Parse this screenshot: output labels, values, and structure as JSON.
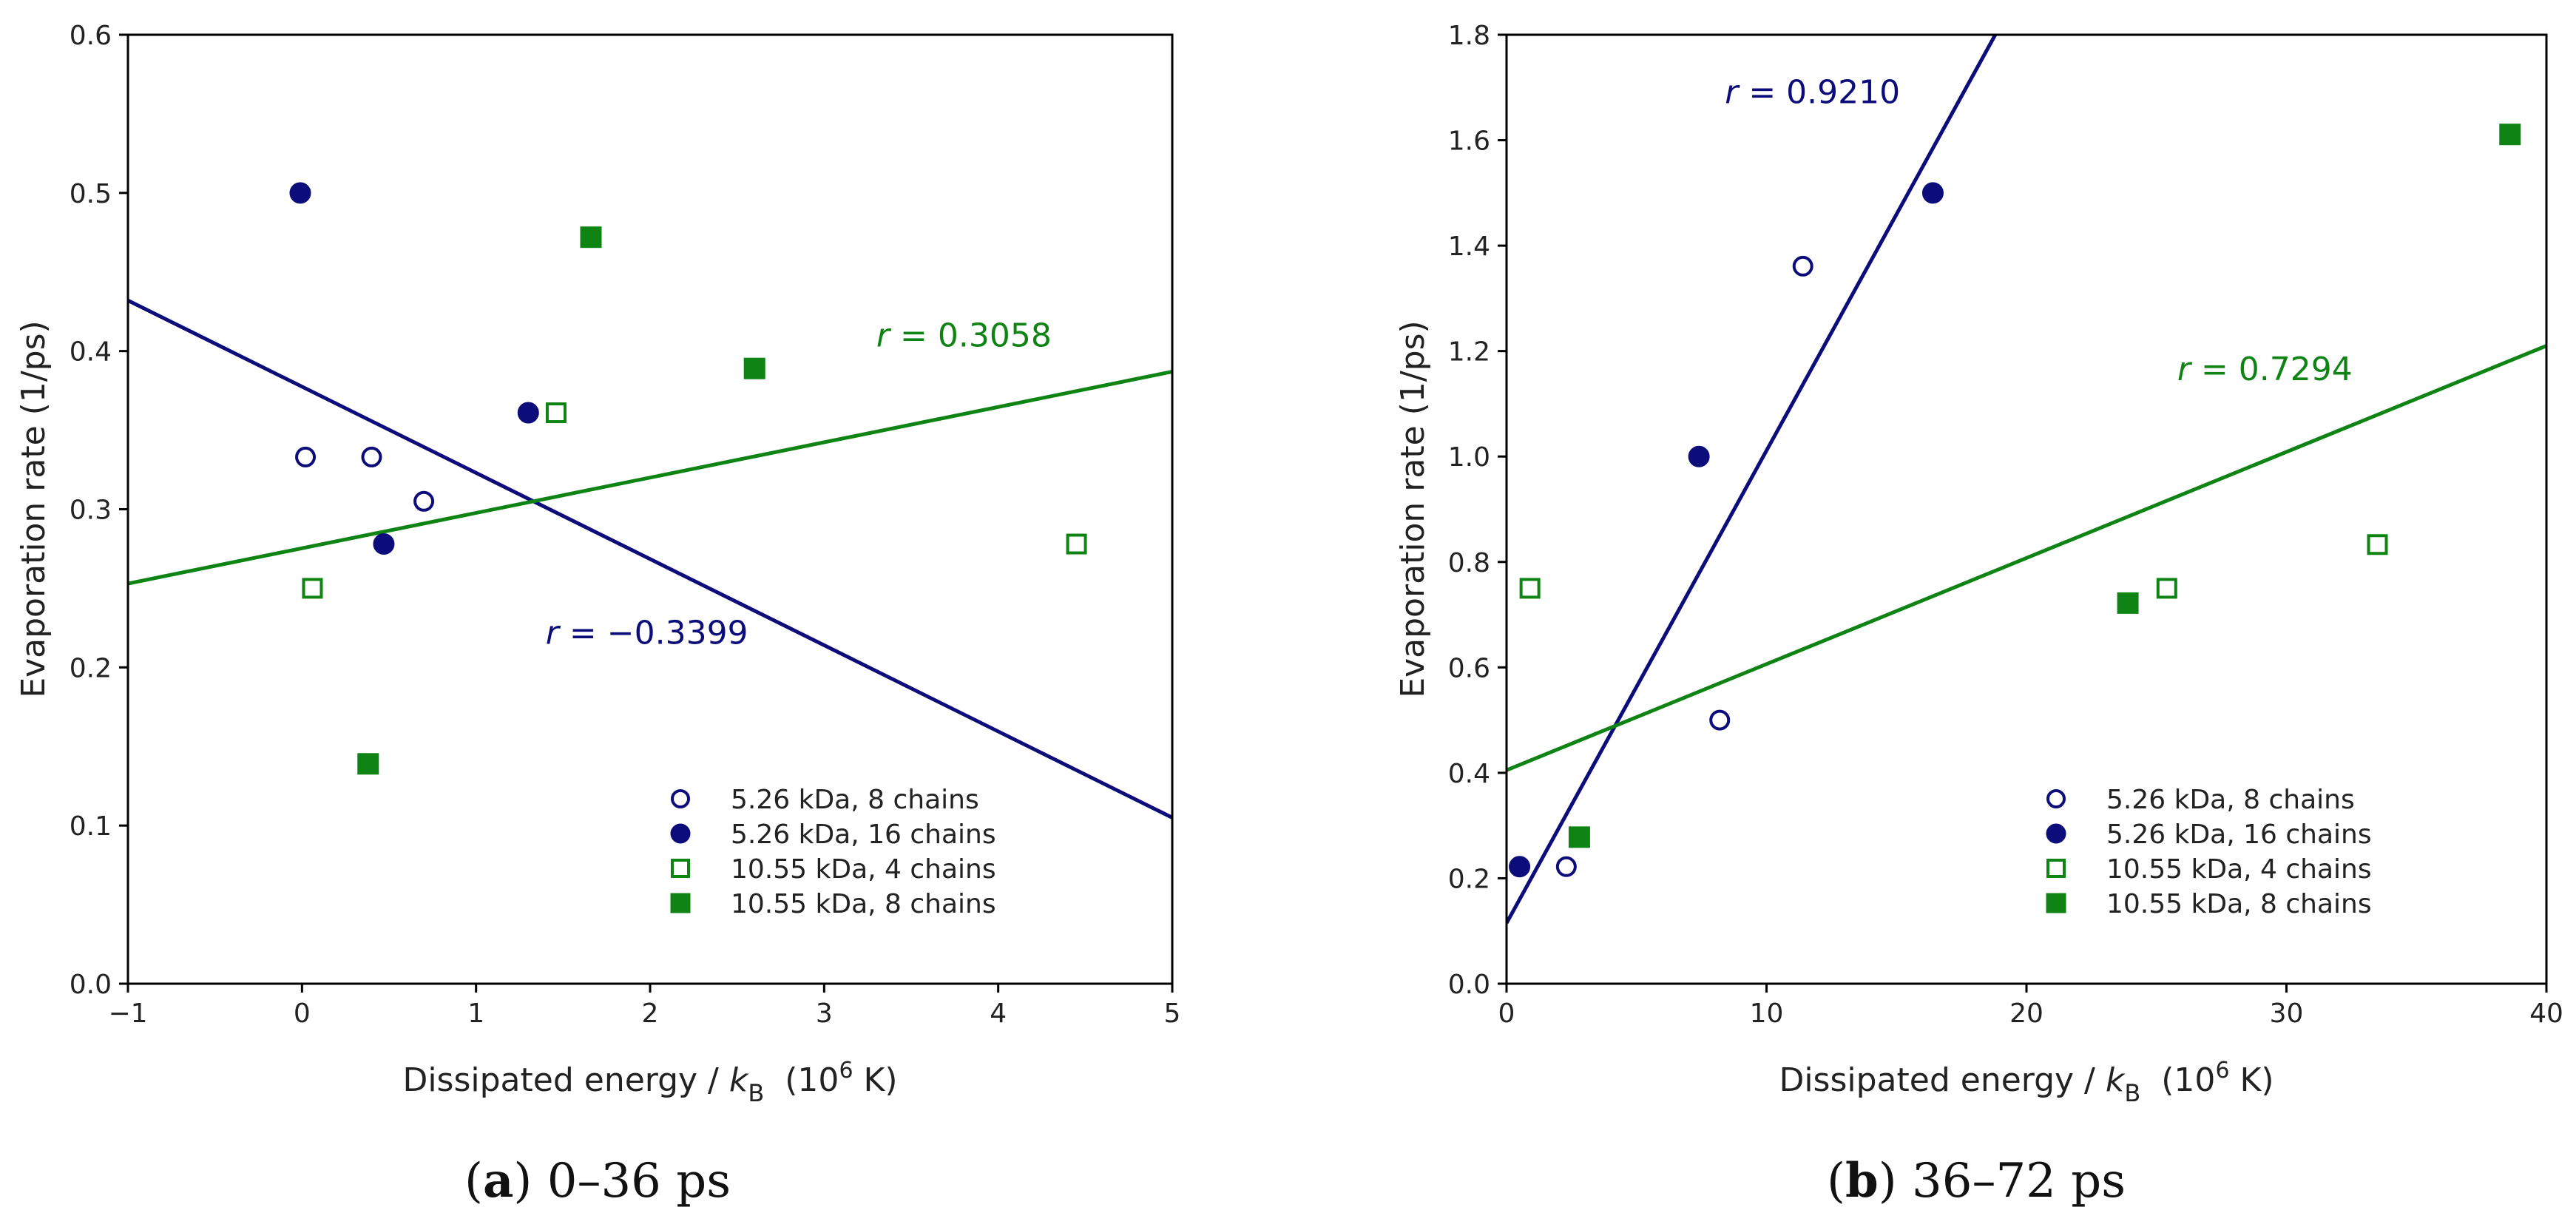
{
  "chart_data": [
    {
      "type": "scatter",
      "caption": {
        "letter": "a",
        "text": "0–36 ps"
      },
      "xlabel": {
        "main": "Dissipated energy / ",
        "sym": "k",
        "sub": "B",
        "unit_pre": "(10",
        "unit_sup": "6",
        "unit_post": " K)"
      },
      "ylabel": "Evaporation rate (1/ps)",
      "xlim": [
        -1,
        5
      ],
      "ylim": [
        0,
        0.6
      ],
      "xticks": [
        -1,
        0,
        1,
        2,
        3,
        4,
        5
      ],
      "xtick_labels": [
        "−1",
        "0",
        "1",
        "2",
        "3",
        "4",
        "5"
      ],
      "yticks": [
        0,
        0.1,
        0.2,
        0.3,
        0.4,
        0.5,
        0.6
      ],
      "ytick_labels": [
        "0.0",
        "0.1",
        "0.2",
        "0.3",
        "0.4",
        "0.5",
        "0.6"
      ],
      "series": [
        {
          "name": "5.26 kDa, 8 chains",
          "marker": "circle-open",
          "color": "#0c0c7a",
          "points": [
            [
              0.02,
              0.333
            ],
            [
              0.4,
              0.333
            ],
            [
              0.7,
              0.305
            ]
          ]
        },
        {
          "name": "5.26 kDa, 16 chains",
          "marker": "circle-filled",
          "color": "#0c0c7a",
          "points": [
            [
              -0.01,
              0.5
            ],
            [
              0.47,
              0.278
            ],
            [
              1.3,
              0.361
            ]
          ]
        },
        {
          "name": "10.55 kDa, 4 chains",
          "marker": "square-open",
          "color": "#0f8414",
          "points": [
            [
              0.06,
              0.25
            ],
            [
              1.46,
              0.361
            ],
            [
              4.45,
              0.278
            ]
          ]
        },
        {
          "name": "10.55 kDa, 8 chains",
          "marker": "square-filled",
          "color": "#0f8414",
          "points": [
            [
              0.38,
              0.139
            ],
            [
              1.66,
              0.472
            ],
            [
              2.6,
              0.389
            ]
          ]
        }
      ],
      "fits": [
        {
          "color": "#0c0c7a",
          "x": [
            -1,
            5
          ],
          "y": [
            0.432,
            0.105
          ],
          "label": "r = −0.3399",
          "label_r": "r",
          "label_val": " = −0.3399",
          "label_at": [
            1.4,
            0.215
          ]
        },
        {
          "color": "#0f8414",
          "x": [
            -1,
            5
          ],
          "y": [
            0.253,
            0.387
          ],
          "label": "r = 0.3058",
          "label_r": "r",
          "label_val": " = 0.3058",
          "label_at": [
            3.3,
            0.403
          ]
        }
      ],
      "legend_position": "lower-right"
    },
    {
      "type": "scatter",
      "caption": {
        "letter": "b",
        "text": "36–72 ps"
      },
      "xlabel": {
        "main": "Dissipated energy / ",
        "sym": "k",
        "sub": "B",
        "unit_pre": "(10",
        "unit_sup": "6",
        "unit_post": " K)"
      },
      "ylabel": "Evaporation rate (1/ps)",
      "xlim": [
        0,
        40
      ],
      "ylim": [
        0,
        1.8
      ],
      "xticks": [
        0,
        10,
        20,
        30,
        40
      ],
      "xtick_labels": [
        "0",
        "10",
        "20",
        "30",
        "40"
      ],
      "yticks": [
        0,
        0.2,
        0.4,
        0.6,
        0.8,
        1.0,
        1.2,
        1.4,
        1.6,
        1.8
      ],
      "ytick_labels": [
        "0.0",
        "0.2",
        "0.4",
        "0.6",
        "0.8",
        "1.0",
        "1.2",
        "1.4",
        "1.6",
        "1.8"
      ],
      "series": [
        {
          "name": "5.26 kDa, 8 chains",
          "marker": "circle-open",
          "color": "#0c0c7a",
          "points": [
            [
              2.3,
              0.222
            ],
            [
              8.2,
              0.5
            ],
            [
              11.4,
              1.361
            ]
          ]
        },
        {
          "name": "5.26 kDa, 16 chains",
          "marker": "circle-filled",
          "color": "#0c0c7a",
          "points": [
            [
              0.5,
              0.222
            ],
            [
              7.4,
              1.0
            ],
            [
              16.4,
              1.5
            ]
          ]
        },
        {
          "name": "10.55 kDa, 4 chains",
          "marker": "square-open",
          "color": "#0f8414",
          "points": [
            [
              0.9,
              0.75
            ],
            [
              25.4,
              0.75
            ],
            [
              33.5,
              0.833
            ]
          ]
        },
        {
          "name": "10.55 kDa, 8 chains",
          "marker": "square-filled",
          "color": "#0f8414",
          "points": [
            [
              2.8,
              0.278
            ],
            [
              23.9,
              0.722
            ],
            [
              38.6,
              1.611
            ]
          ]
        }
      ],
      "fits": [
        {
          "color": "#0c0c7a",
          "x": [
            0,
            18.8
          ],
          "y": [
            0.115,
            1.8
          ],
          "label": "r = 0.9210",
          "label_r": "r",
          "label_val": " = 0.9210",
          "label_at": [
            8.4,
            1.67
          ]
        },
        {
          "color": "#0f8414",
          "x": [
            0,
            40
          ],
          "y": [
            0.405,
            1.21
          ],
          "label": "r = 0.7294",
          "label_r": "r",
          "label_val": " = 0.7294",
          "label_at": [
            25.8,
            1.145
          ]
        }
      ],
      "legend_position": "lower-right"
    }
  ]
}
